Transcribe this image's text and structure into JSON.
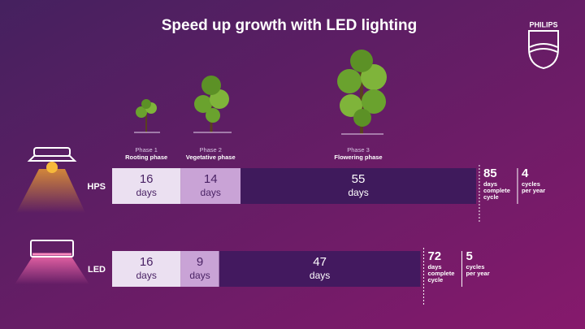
{
  "title": "Speed up growth with LED lighting",
  "brand": "PHILIPS",
  "unit": "days",
  "phases": [
    {
      "label": "Phase 1",
      "name": "Rooting phase"
    },
    {
      "label": "Phase 2",
      "name": "Vegetative phase"
    },
    {
      "label": "Phase 3",
      "name": "Flowering phase"
    }
  ],
  "total_label": [
    "days",
    "complete",
    "cycle"
  ],
  "cycles_label": [
    "cycles",
    "per year"
  ],
  "rows": [
    {
      "name": "HPS",
      "segments": [
        16,
        14,
        55
      ],
      "total": 85,
      "cycles": 4
    },
    {
      "name": "LED",
      "segments": [
        16,
        9,
        47
      ],
      "total": 72,
      "cycles": 5
    }
  ]
}
